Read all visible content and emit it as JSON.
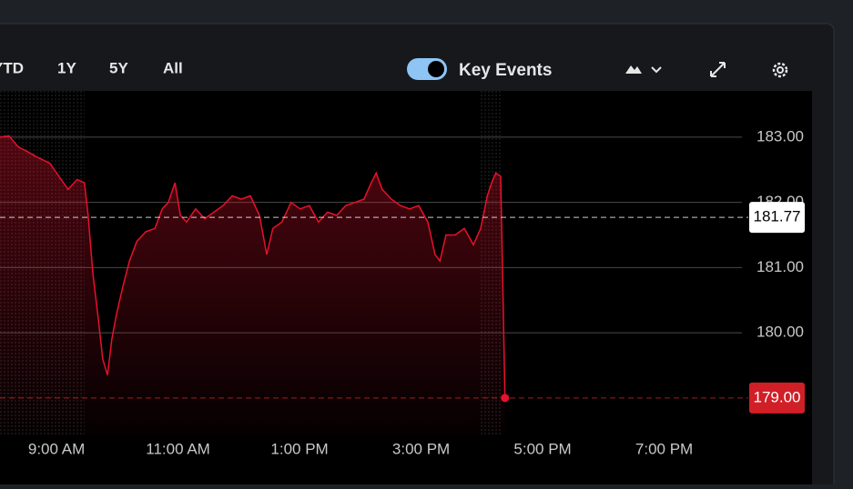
{
  "toolbar": {
    "ranges": [
      "YTD",
      "1Y",
      "5Y",
      "All"
    ],
    "key_events": "Key Events"
  },
  "chart_data": {
    "type": "line",
    "color": "#e8112d",
    "grid": true,
    "x": [
      8.07,
      8.22,
      8.37,
      8.52,
      8.67,
      8.89,
      9.04,
      9.19,
      9.34,
      9.46,
      9.52,
      9.6,
      9.69,
      9.76,
      9.84,
      9.91,
      9.99,
      10.09,
      10.2,
      10.32,
      10.47,
      10.62,
      10.74,
      10.84,
      10.95,
      11.04,
      11.14,
      11.29,
      11.44,
      11.59,
      11.74,
      11.89,
      12.04,
      12.19,
      12.34,
      12.46,
      12.56,
      12.71,
      12.86,
      13.01,
      13.16,
      13.31,
      13.46,
      13.61,
      13.76,
      13.91,
      14.06,
      14.18,
      14.26,
      14.36,
      14.51,
      14.66,
      14.81,
      14.96,
      15.11,
      15.23,
      15.31,
      15.41,
      15.56,
      15.71,
      15.86,
      15.98,
      16.09,
      16.16,
      16.23,
      16.31,
      16.38
    ],
    "values": [
      183.0,
      183.02,
      182.85,
      182.78,
      182.7,
      182.6,
      182.4,
      182.2,
      182.35,
      182.3,
      181.8,
      180.9,
      180.2,
      179.6,
      179.35,
      179.9,
      180.3,
      180.7,
      181.1,
      181.4,
      181.55,
      181.6,
      181.9,
      182.0,
      182.3,
      181.8,
      181.7,
      181.9,
      181.75,
      181.85,
      181.95,
      182.1,
      182.05,
      182.1,
      181.8,
      181.2,
      181.6,
      181.7,
      182.0,
      181.9,
      181.95,
      181.7,
      181.85,
      181.8,
      181.95,
      182.0,
      182.05,
      182.3,
      182.45,
      182.2,
      182.05,
      181.95,
      181.9,
      181.95,
      181.7,
      181.2,
      181.1,
      181.5,
      181.5,
      181.6,
      181.35,
      181.6,
      182.1,
      182.3,
      182.45,
      182.4,
      179.0
    ],
    "xlim": [
      8.07,
      20.28
    ],
    "xticks": [
      {
        "value": 9,
        "label": "9:00 AM"
      },
      {
        "value": 11,
        "label": "11:00 AM"
      },
      {
        "value": 13,
        "label": "1:00 PM"
      },
      {
        "value": 15,
        "label": "3:00 PM"
      },
      {
        "value": 17,
        "label": "5:00 PM"
      },
      {
        "value": 19,
        "label": "7:00 PM"
      }
    ],
    "ylim": [
      178.44,
      183.71
    ],
    "yticks": [
      {
        "value": 180,
        "label": "180.00"
      },
      {
        "value": 181,
        "label": "181.00"
      },
      {
        "value": 182,
        "label": "182.00"
      },
      {
        "value": 183,
        "label": "183.00"
      }
    ],
    "reference_lines": [
      {
        "value": 181.77,
        "label": "181.77",
        "color": "#ffffff"
      },
      {
        "value": 179,
        "label": "179.00",
        "color": "#d01f27"
      }
    ]
  }
}
